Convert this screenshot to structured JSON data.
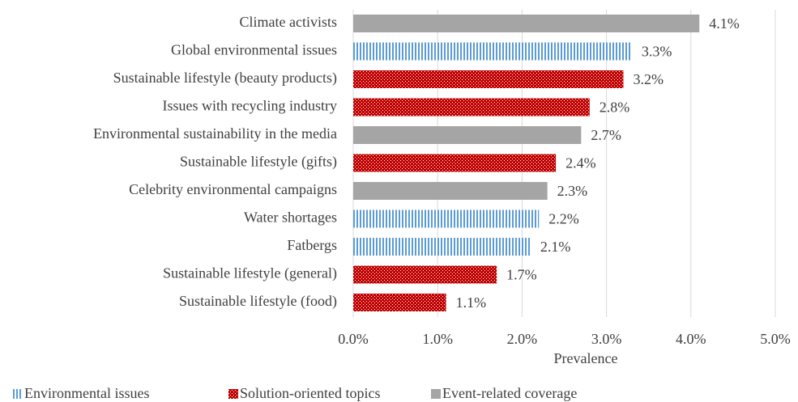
{
  "chart_data": {
    "type": "hbar",
    "categories": [
      "Climate activists",
      "Global environmental issues",
      "Sustainable lifestyle (beauty products)",
      "Issues with recycling industry",
      "Environmental sustainability in the media",
      "Sustainable lifestyle (gifts)",
      "Celebrity environmental campaigns",
      "Water shortages",
      "Fatbergs",
      "Sustainable lifestyle (general)",
      "Sustainable lifestyle (food)"
    ],
    "series": [
      {
        "name": "Environmental issues",
        "color": "#5b9bd5",
        "pattern": "vertical-stripes",
        "values": [
          null,
          3.3,
          null,
          null,
          null,
          null,
          null,
          2.2,
          2.1,
          null,
          null
        ],
        "value_labels": [
          null,
          "3.3%",
          null,
          null,
          null,
          null,
          null,
          "2.2%",
          "2.1%",
          null,
          null
        ]
      },
      {
        "name": "Solution-oriented topics",
        "color": "#c00000",
        "pattern": "crosshatch",
        "values": [
          null,
          null,
          3.2,
          2.8,
          null,
          2.4,
          null,
          null,
          null,
          1.7,
          1.1
        ],
        "value_labels": [
          null,
          null,
          "3.2%",
          "2.8%",
          null,
          "2.4%",
          null,
          null,
          null,
          "1.7%",
          "1.1%"
        ]
      },
      {
        "name": "Event-related coverage",
        "color": "#a5a5a5",
        "pattern": "solid",
        "values": [
          4.1,
          null,
          null,
          null,
          2.7,
          null,
          2.3,
          null,
          null,
          null,
          null
        ],
        "value_labels": [
          "4.1%",
          null,
          null,
          null,
          "2.7%",
          null,
          "2.3%",
          null,
          null,
          null,
          null
        ]
      }
    ],
    "x_label": "Prevalence",
    "xlim": [
      0,
      5
    ],
    "xticks": [
      {
        "value": 0,
        "label": "0.0%"
      },
      {
        "value": 1,
        "label": "1.0%"
      },
      {
        "value": 2,
        "label": "2.0%"
      },
      {
        "value": 3,
        "label": "3.0%"
      },
      {
        "value": 4,
        "label": "4.0%"
      },
      {
        "value": 5,
        "label": "5.0%"
      }
    ],
    "grid": true,
    "legend": "bottom"
  }
}
